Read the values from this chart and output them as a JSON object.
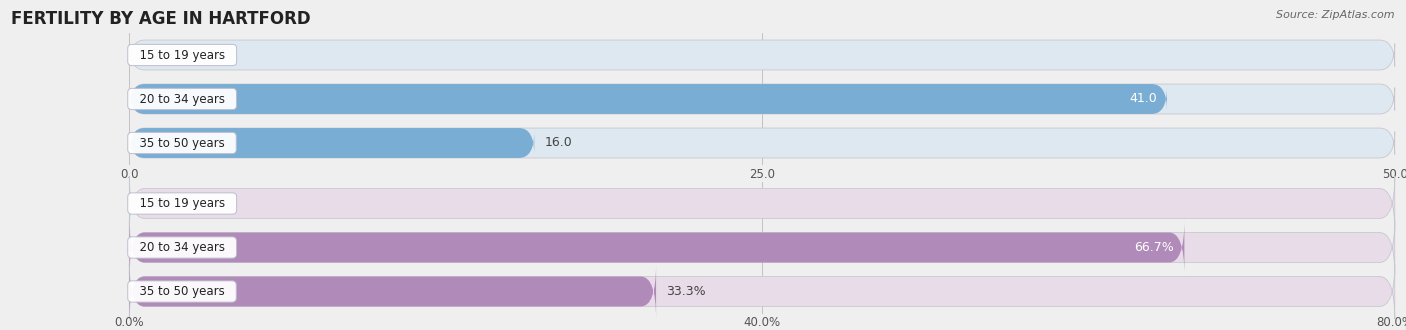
{
  "title": "FERTILITY BY AGE IN HARTFORD",
  "source": "Source: ZipAtlas.com",
  "top_section": {
    "categories": [
      "15 to 19 years",
      "20 to 34 years",
      "35 to 50 years"
    ],
    "values": [
      0.0,
      41.0,
      16.0
    ],
    "xlim": [
      0,
      50
    ],
    "xticks": [
      0.0,
      25.0,
      50.0
    ],
    "xtick_labels": [
      "0.0",
      "25.0",
      "50.0"
    ],
    "bar_color": "#7aadd4",
    "bar_bg_color": "#dde8f0",
    "value_label_suffix": ""
  },
  "bottom_section": {
    "categories": [
      "15 to 19 years",
      "20 to 34 years",
      "35 to 50 years"
    ],
    "values": [
      0.0,
      66.7,
      33.3
    ],
    "xlim": [
      0,
      80
    ],
    "xticks": [
      0.0,
      40.0,
      80.0
    ],
    "xtick_labels": [
      "0.0%",
      "40.0%",
      "80.0%"
    ],
    "bar_color": "#b08ab8",
    "bar_bg_color": "#e8dce8",
    "value_label_suffix": "%"
  },
  "bg_color": "#efefef",
  "bar_row_bg": "#f5f5f8",
  "label_fontsize": 9,
  "tick_fontsize": 8.5,
  "title_fontsize": 12,
  "category_fontsize": 8.5
}
